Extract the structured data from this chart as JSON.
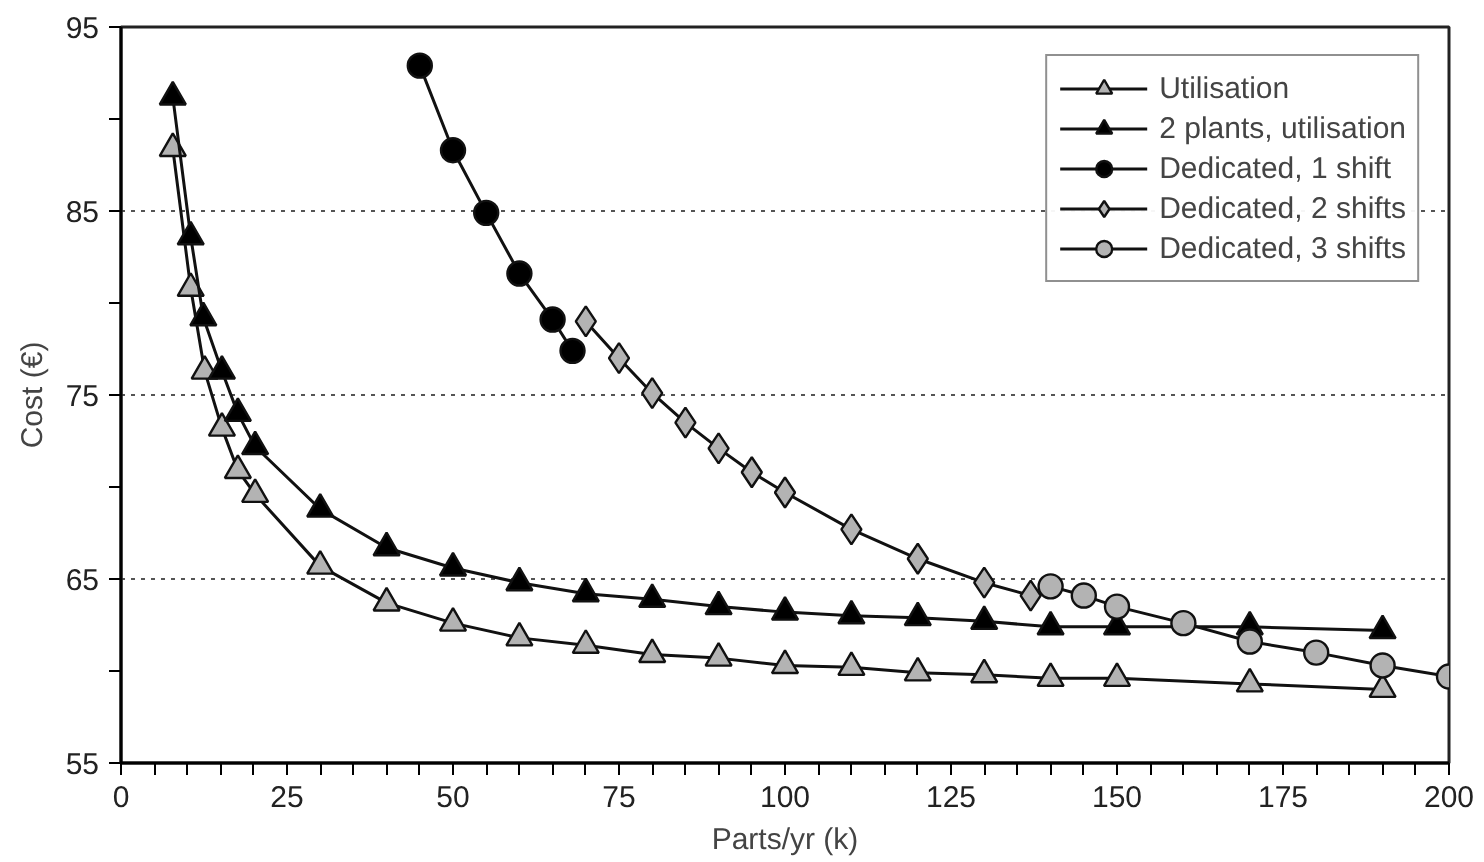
{
  "chart_data": {
    "type": "line",
    "xlabel": "Parts/yr (k)",
    "ylabel": "Cost (€)",
    "xlim": [
      0,
      200
    ],
    "ylim": [
      55,
      95
    ],
    "xticks": [
      0,
      {
        "value": 5,
        "label": null
      },
      {
        "value": 10,
        "label": null
      },
      {
        "value": 15,
        "label": null
      },
      {
        "value": 20,
        "label": null
      },
      25,
      {
        "value": 30,
        "label": null
      },
      {
        "value": 35,
        "label": null
      },
      {
        "value": 40,
        "label": null
      },
      {
        "value": 45,
        "label": null
      },
      50,
      {
        "value": 55,
        "label": null
      },
      {
        "value": 60,
        "label": null
      },
      {
        "value": 65,
        "label": null
      },
      {
        "value": 70,
        "label": null
      },
      75,
      {
        "value": 80,
        "label": null
      },
      {
        "value": 85,
        "label": null
      },
      {
        "value": 90,
        "label": null
      },
      {
        "value": 95,
        "label": null
      },
      100,
      {
        "value": 105,
        "label": null
      },
      {
        "value": 110,
        "label": null
      },
      {
        "value": 115,
        "label": null
      },
      {
        "value": 120,
        "label": null
      },
      125,
      {
        "value": 130,
        "label": null
      },
      {
        "value": 135,
        "label": null
      },
      {
        "value": 140,
        "label": null
      },
      {
        "value": 145,
        "label": null
      },
      150,
      {
        "value": 155,
        "label": null
      },
      {
        "value": 160,
        "label": null
      },
      {
        "value": 165,
        "label": null
      },
      {
        "value": 170,
        "label": null
      },
      175,
      {
        "value": 180,
        "label": null
      },
      {
        "value": 185,
        "label": null
      },
      {
        "value": 190,
        "label": null
      },
      {
        "value": 195,
        "label": null
      },
      200
    ],
    "yticks": [
      55,
      {
        "value": 60,
        "label": null
      },
      65,
      {
        "value": 70,
        "label": null
      },
      75,
      {
        "value": 80,
        "label": null
      },
      85,
      {
        "value": 90,
        "label": null
      },
      95
    ],
    "grid": "y",
    "legend": "top right",
    "line_style": "solid",
    "series": [
      {
        "name": "Utilisation",
        "color": "#b3b3b3",
        "marker": "triangle",
        "x": [
          7.8,
          10.5,
          12.6,
          15.2,
          17.6,
          20.2,
          30,
          40,
          50,
          60,
          70,
          80,
          90,
          100,
          110,
          120,
          130,
          140,
          150,
          170,
          190
        ],
        "values": [
          88.4,
          80.8,
          76.3,
          73.2,
          70.9,
          69.6,
          65.7,
          63.7,
          62.6,
          61.8,
          61.4,
          60.9,
          60.7,
          60.3,
          60.2,
          59.9,
          59.8,
          59.6,
          59.6,
          59.3,
          59.0
        ]
      },
      {
        "name": "2 plants, utilisation",
        "color": "#000000",
        "marker": "triangle",
        "x": [
          7.8,
          10.5,
          12.4,
          15.2,
          17.6,
          20.2,
          30,
          40,
          50,
          60,
          70,
          80,
          90,
          100,
          110,
          120,
          130,
          140,
          150,
          170,
          190
        ],
        "values": [
          91.2,
          83.6,
          79.2,
          76.3,
          74.0,
          72.2,
          68.8,
          66.7,
          65.6,
          64.8,
          64.2,
          63.9,
          63.5,
          63.2,
          63.0,
          62.9,
          62.7,
          62.4,
          62.4,
          62.4,
          62.2
        ]
      },
      {
        "name": "Dedicated, 1 shift",
        "color": "#000000",
        "marker": "circle",
        "x": [
          45,
          50,
          55,
          60,
          65,
          68
        ],
        "values": [
          92.9,
          88.3,
          84.9,
          81.6,
          79.1,
          77.4
        ]
      },
      {
        "name": "Dedicated, 2 shifts",
        "color": "#b3b3b3",
        "marker": "diamond",
        "x": [
          70,
          75,
          80,
          85,
          90,
          95,
          100,
          110,
          120,
          130,
          137
        ],
        "values": [
          79.0,
          77.0,
          75.1,
          73.5,
          72.1,
          70.8,
          69.7,
          67.7,
          66.1,
          64.8,
          64.1
        ]
      },
      {
        "name": "Dedicated, 3 shifts",
        "color": "#b3b3b3",
        "marker": "circle",
        "x": [
          140,
          145,
          150,
          160,
          170,
          180,
          190,
          200
        ],
        "values": [
          64.6,
          64.1,
          63.5,
          62.6,
          61.6,
          61.0,
          60.3,
          59.7
        ]
      }
    ]
  }
}
